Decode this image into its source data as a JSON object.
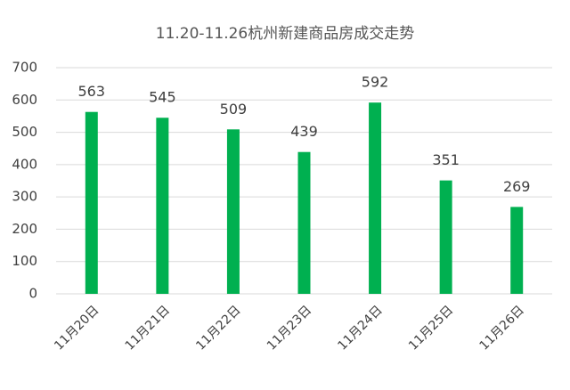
{
  "chart_data": {
    "type": "bar",
    "title": "11.20-11.26杭州新建商品房成交走势",
    "categories": [
      "11月20日",
      "11月21日",
      "11月22日",
      "11月23日",
      "11月24日",
      "11月25日",
      "11月26日"
    ],
    "values": [
      563,
      545,
      509,
      439,
      592,
      351,
      269
    ],
    "color": "#00b050",
    "ylim": [
      0,
      700
    ],
    "yticks": [
      0,
      100,
      200,
      300,
      400,
      500,
      600,
      700
    ],
    "grid": true
  }
}
